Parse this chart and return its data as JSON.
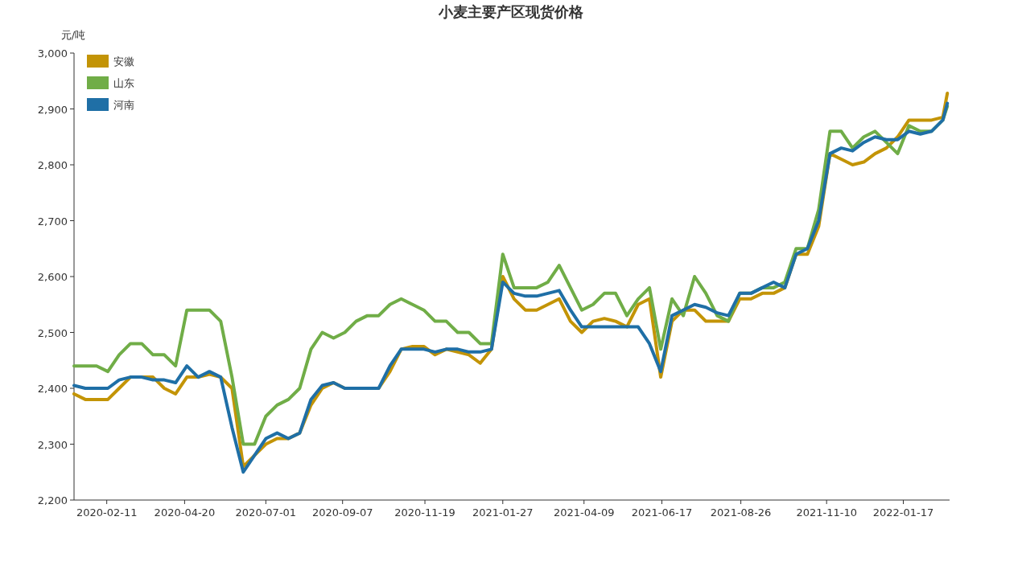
{
  "chart_data": {
    "type": "line",
    "title": "小麦主要产区现货价格",
    "ylabel": "元/吨",
    "x": [
      "2020-01-13",
      "2020-01-23",
      "2020-02-02",
      "2020-02-12",
      "2020-02-22",
      "2020-03-03",
      "2020-03-13",
      "2020-03-23",
      "2020-04-02",
      "2020-04-12",
      "2020-04-22",
      "2020-05-02",
      "2020-05-12",
      "2020-05-22",
      "2020-06-01",
      "2020-06-11",
      "2020-06-21",
      "2020-07-01",
      "2020-07-11",
      "2020-07-21",
      "2020-07-31",
      "2020-08-10",
      "2020-08-20",
      "2020-08-30",
      "2020-09-09",
      "2020-09-19",
      "2020-09-29",
      "2020-10-09",
      "2020-10-19",
      "2020-10-29",
      "2020-11-08",
      "2020-11-18",
      "2020-11-28",
      "2020-12-08",
      "2020-12-18",
      "2020-12-28",
      "2021-01-07",
      "2021-01-17",
      "2021-01-27",
      "2021-02-06",
      "2021-02-16",
      "2021-02-26",
      "2021-03-08",
      "2021-03-18",
      "2021-03-28",
      "2021-04-07",
      "2021-04-17",
      "2021-04-27",
      "2021-05-07",
      "2021-05-17",
      "2021-05-27",
      "2021-06-06",
      "2021-06-16",
      "2021-06-26",
      "2021-07-06",
      "2021-07-16",
      "2021-07-26",
      "2021-08-05",
      "2021-08-15",
      "2021-08-25",
      "2021-09-04",
      "2021-09-14",
      "2021-09-24",
      "2021-10-04",
      "2021-10-14",
      "2021-10-24",
      "2021-11-03",
      "2021-11-13",
      "2021-11-23",
      "2021-12-03",
      "2021-12-13",
      "2021-12-23",
      "2022-01-02",
      "2022-01-12",
      "2022-01-22",
      "2022-02-01",
      "2022-02-11",
      "2022-02-21",
      "2022-02-25"
    ],
    "series": [
      {
        "name": "安徽",
        "color": "#c39406",
        "values": [
          2390,
          2380,
          2380,
          2380,
          2400,
          2420,
          2420,
          2420,
          2400,
          2390,
          2420,
          2420,
          2425,
          2420,
          2400,
          2260,
          2280,
          2300,
          2310,
          2310,
          2320,
          2370,
          2400,
          2410,
          2400,
          2400,
          2400,
          2400,
          2430,
          2470,
          2475,
          2475,
          2460,
          2470,
          2465,
          2460,
          2445,
          2470,
          2600,
          2560,
          2540,
          2540,
          2550,
          2560,
          2520,
          2500,
          2520,
          2525,
          2520,
          2510,
          2550,
          2560,
          2420,
          2520,
          2540,
          2540,
          2520,
          2520,
          2520,
          2560,
          2560,
          2570,
          2570,
          2580,
          2640,
          2640,
          2690,
          2820,
          2810,
          2800,
          2805,
          2820,
          2830,
          2850,
          2880,
          2880,
          2880,
          2885,
          2928
        ]
      },
      {
        "name": "山东",
        "color": "#70ad47",
        "values": [
          2440,
          2440,
          2440,
          2430,
          2460,
          2480,
          2480,
          2460,
          2460,
          2440,
          2540,
          2540,
          2540,
          2520,
          2420,
          2300,
          2300,
          2350,
          2370,
          2380,
          2400,
          2470,
          2500,
          2490,
          2500,
          2520,
          2530,
          2530,
          2550,
          2560,
          2550,
          2540,
          2520,
          2520,
          2500,
          2500,
          2480,
          2480,
          2640,
          2580,
          2580,
          2580,
          2590,
          2620,
          2580,
          2540,
          2550,
          2570,
          2570,
          2530,
          2560,
          2580,
          2470,
          2560,
          2530,
          2600,
          2570,
          2530,
          2520,
          2570,
          2570,
          2580,
          2580,
          2590,
          2650,
          2650,
          2720,
          2860,
          2860,
          2830,
          2850,
          2860,
          2840,
          2820,
          2870,
          2860,
          2860,
          2880,
          2905
        ]
      },
      {
        "name": "河南",
        "color": "#1f6fa6",
        "values": [
          2405,
          2400,
          2400,
          2400,
          2415,
          2420,
          2420,
          2415,
          2415,
          2410,
          2440,
          2420,
          2430,
          2420,
          2330,
          2250,
          2280,
          2310,
          2320,
          2310,
          2320,
          2380,
          2405,
          2410,
          2400,
          2400,
          2400,
          2400,
          2440,
          2470,
          2470,
          2470,
          2465,
          2470,
          2470,
          2465,
          2465,
          2470,
          2590,
          2570,
          2565,
          2565,
          2570,
          2575,
          2540,
          2510,
          2510,
          2510,
          2510,
          2510,
          2510,
          2480,
          2430,
          2530,
          2540,
          2550,
          2545,
          2535,
          2530,
          2570,
          2570,
          2580,
          2590,
          2580,
          2640,
          2650,
          2700,
          2820,
          2830,
          2825,
          2840,
          2850,
          2845,
          2845,
          2860,
          2855,
          2860,
          2880,
          2910
        ]
      }
    ],
    "xlim": [
      "2020-01-13",
      "2022-02-27"
    ],
    "xticks": [
      "2020-02-11",
      "2020-04-20",
      "2020-07-01",
      "2020-09-07",
      "2020-11-19",
      "2021-01-27",
      "2021-04-09",
      "2021-06-17",
      "2021-08-26",
      "2021-11-10",
      "2022-01-17"
    ],
    "ylim": [
      2200,
      3000
    ],
    "yticks": [
      {
        "value": 2200,
        "label": "2,200"
      },
      {
        "value": 2300,
        "label": "2,300"
      },
      {
        "value": 2400,
        "label": "2,400"
      },
      {
        "value": 2500,
        "label": "2,500"
      },
      {
        "value": 2600,
        "label": "2,600"
      },
      {
        "value": 2700,
        "label": "2,700"
      },
      {
        "value": 2800,
        "label": "2,800"
      },
      {
        "value": 2900,
        "label": "2,900"
      },
      {
        "value": 3000,
        "label": "3,000"
      }
    ],
    "legend": "top left",
    "marker": "none",
    "line_style": "solid"
  }
}
